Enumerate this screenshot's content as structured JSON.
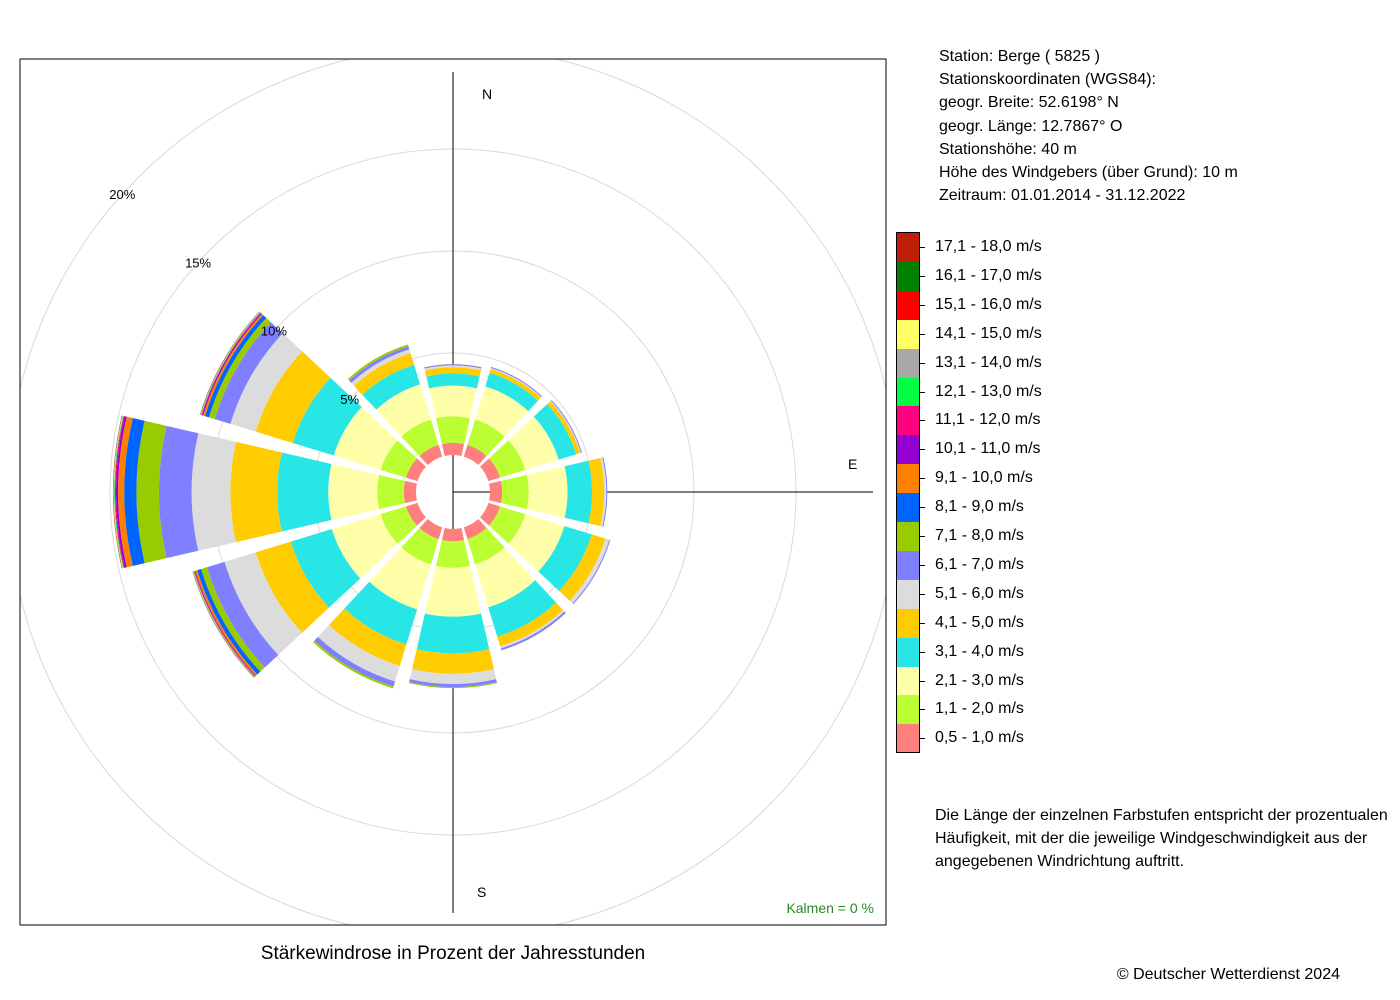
{
  "info": {
    "lines": [
      "Station:  Berge  ( 5825 )",
      "Stationskoordinaten (WGS84):",
      "geogr. Breite: 52.6198° N",
      "geogr. Länge: 12.7867° O",
      "Stationshöhe: 40 m",
      "Höhe des Windgebers (über Grund): 10 m",
      "Zeitraum: 01.01.2014 - 31.12.2022"
    ]
  },
  "caption": "Stärkewindrose in Prozent der Jahresstunden",
  "copyright": "© Deutscher Wetterdienst  2024",
  "note": "Die Länge der einzelnen Farbstufen entspricht der prozentualen Häufigkeit, mit der die jeweilige Windgeschwindigkeit aus der angegebenen Windrichtung auftritt.",
  "calm": "Kalmen  =  0 %",
  "calm_color": "#228B22",
  "compass": {
    "n": "N",
    "e": "E",
    "s": "S"
  },
  "legend": [
    {
      "label": "17,1 - 18,0 m/s",
      "color": "#BF1F08"
    },
    {
      "label": "16,1 - 17,0 m/s",
      "color": "#007F00"
    },
    {
      "label": "15,1 - 16,0 m/s",
      "color": "#FF0000"
    },
    {
      "label": "14,1 - 15,0 m/s",
      "color": "#FFFF66"
    },
    {
      "label": "13,1 - 14,0 m/s",
      "color": "#A9A9A9"
    },
    {
      "label": "12,1 - 13,0 m/s",
      "color": "#00FF40"
    },
    {
      "label": "11,1 - 12,0 m/s",
      "color": "#FF0080"
    },
    {
      "label": "10,1 - 11,0 m/s",
      "color": "#9400D3"
    },
    {
      "label": "9,1 - 10,0 m/s",
      "color": "#FF8000"
    },
    {
      "label": "8,1 - 9,0 m/s",
      "color": "#0064FF"
    },
    {
      "label": "7,1 - 8,0 m/s",
      "color": "#99CC00"
    },
    {
      "label": "6,1 - 7,0 m/s",
      "color": "#7F7FFF"
    },
    {
      "label": "5,1 - 6,0 m/s",
      "color": "#DCDCDC"
    },
    {
      "label": "4,1 - 5,0 m/s",
      "color": "#FFCC00"
    },
    {
      "label": "3,1 - 4,0 m/s",
      "color": "#28E6E6"
    },
    {
      "label": "2,1 - 3,0 m/s",
      "color": "#FFFFAA"
    },
    {
      "label": "1,1 - 2,0 m/s",
      "color": "#BBFF33"
    },
    {
      "label": "0,5 - 1,0 m/s",
      "color": "#FF7F7F"
    }
  ],
  "chart_data": {
    "type": "windrose",
    "title": "Stärkewindrose in Prozent der Jahresstunden",
    "unit": "%",
    "rings": [
      5,
      10,
      15,
      20
    ],
    "ring_labels": [
      "5%",
      "10%",
      "15%",
      "20%"
    ],
    "directions_deg": [
      0,
      30,
      60,
      90,
      120,
      150,
      180,
      210,
      240,
      270,
      300,
      330
    ],
    "classes": [
      "0,5 - 1,0 m/s",
      "1,1 - 2,0 m/s",
      "2,1 - 3,0 m/s",
      "3,1 - 4,0 m/s",
      "4,1 - 5,0 m/s",
      "5,1 - 6,0 m/s",
      "6,1 - 7,0 m/s",
      "7,1 - 8,0 m/s",
      "8,1 - 9,0 m/s",
      "9,1 - 10,0 m/s",
      "10,1 - 11,0 m/s",
      "11,1 - 12,0 m/s",
      "12,1 - 13,0 m/s",
      "13,1 - 14,0 m/s",
      "14,1 - 15,0 m/s",
      "15,1 - 16,0 m/s",
      "16,1 - 17,0 m/s",
      "17,1 - 18,0 m/s"
    ],
    "series": [
      {
        "direction": 0,
        "values": [
          0.6,
          1.3,
          1.5,
          0.6,
          0.3,
          0.1,
          0.05,
          0.01,
          0,
          0,
          0,
          0,
          0,
          0,
          0,
          0,
          0,
          0
        ]
      },
      {
        "direction": 30,
        "values": [
          0.6,
          1.3,
          1.7,
          0.7,
          0.2,
          0.05,
          0.05,
          0,
          0,
          0,
          0,
          0,
          0,
          0,
          0,
          0,
          0,
          0
        ]
      },
      {
        "direction": 60,
        "values": [
          0.6,
          1.3,
          1.7,
          0.9,
          0.2,
          0.05,
          0.05,
          0,
          0,
          0,
          0,
          0,
          0,
          0,
          0,
          0,
          0,
          0
        ]
      },
      {
        "direction": 90,
        "values": [
          0.6,
          1.3,
          1.9,
          1.2,
          0.6,
          0.1,
          0.05,
          0,
          0,
          0,
          0,
          0,
          0,
          0,
          0,
          0,
          0,
          0
        ]
      },
      {
        "direction": 120,
        "values": [
          0.6,
          1.3,
          2.0,
          1.4,
          0.7,
          0.2,
          0.05,
          0,
          0,
          0,
          0,
          0,
          0,
          0,
          0,
          0,
          0,
          0
        ]
      },
      {
        "direction": 150,
        "values": [
          0.6,
          1.3,
          2.2,
          1.5,
          0.5,
          0.1,
          0.1,
          0,
          0,
          0,
          0,
          0,
          0,
          0,
          0,
          0,
          0,
          0
        ]
      },
      {
        "direction": 180,
        "values": [
          0.6,
          1.3,
          2.4,
          1.8,
          1.0,
          0.5,
          0.15,
          0.05,
          0,
          0,
          0,
          0,
          0,
          0,
          0,
          0,
          0,
          0
        ]
      },
      {
        "direction": 210,
        "values": [
          0.6,
          1.3,
          2.3,
          1.8,
          1.1,
          0.8,
          0.25,
          0.1,
          0,
          0,
          0,
          0,
          0,
          0,
          0,
          0,
          0,
          0
        ]
      },
      {
        "direction": 240,
        "values": [
          0.6,
          1.3,
          2.5,
          2.1,
          1.8,
          1.6,
          0.9,
          0.3,
          0.2,
          0.1,
          0.03,
          0.03,
          0.02,
          0.02,
          0.01,
          0.01,
          0.01,
          0.01
        ]
      },
      {
        "direction": 270,
        "values": [
          0.6,
          1.3,
          2.4,
          2.5,
          2.3,
          1.9,
          1.6,
          1.1,
          0.6,
          0.3,
          0.1,
          0.05,
          0.03,
          0.02,
          0.02,
          0.01,
          0.01,
          0.01
        ]
      },
      {
        "direction": 300,
        "values": [
          0.6,
          1.3,
          2.4,
          2.1,
          1.9,
          1.3,
          0.8,
          0.3,
          0.2,
          0.1,
          0.05,
          0.03,
          0.02,
          0.02,
          0.01,
          0.01,
          0.01,
          0.01
        ]
      },
      {
        "direction": 330,
        "values": [
          0.6,
          1.3,
          1.8,
          1.0,
          0.6,
          0.2,
          0.15,
          0.1,
          0,
          0,
          0,
          0,
          0,
          0,
          0,
          0,
          0,
          0
        ]
      }
    ]
  }
}
